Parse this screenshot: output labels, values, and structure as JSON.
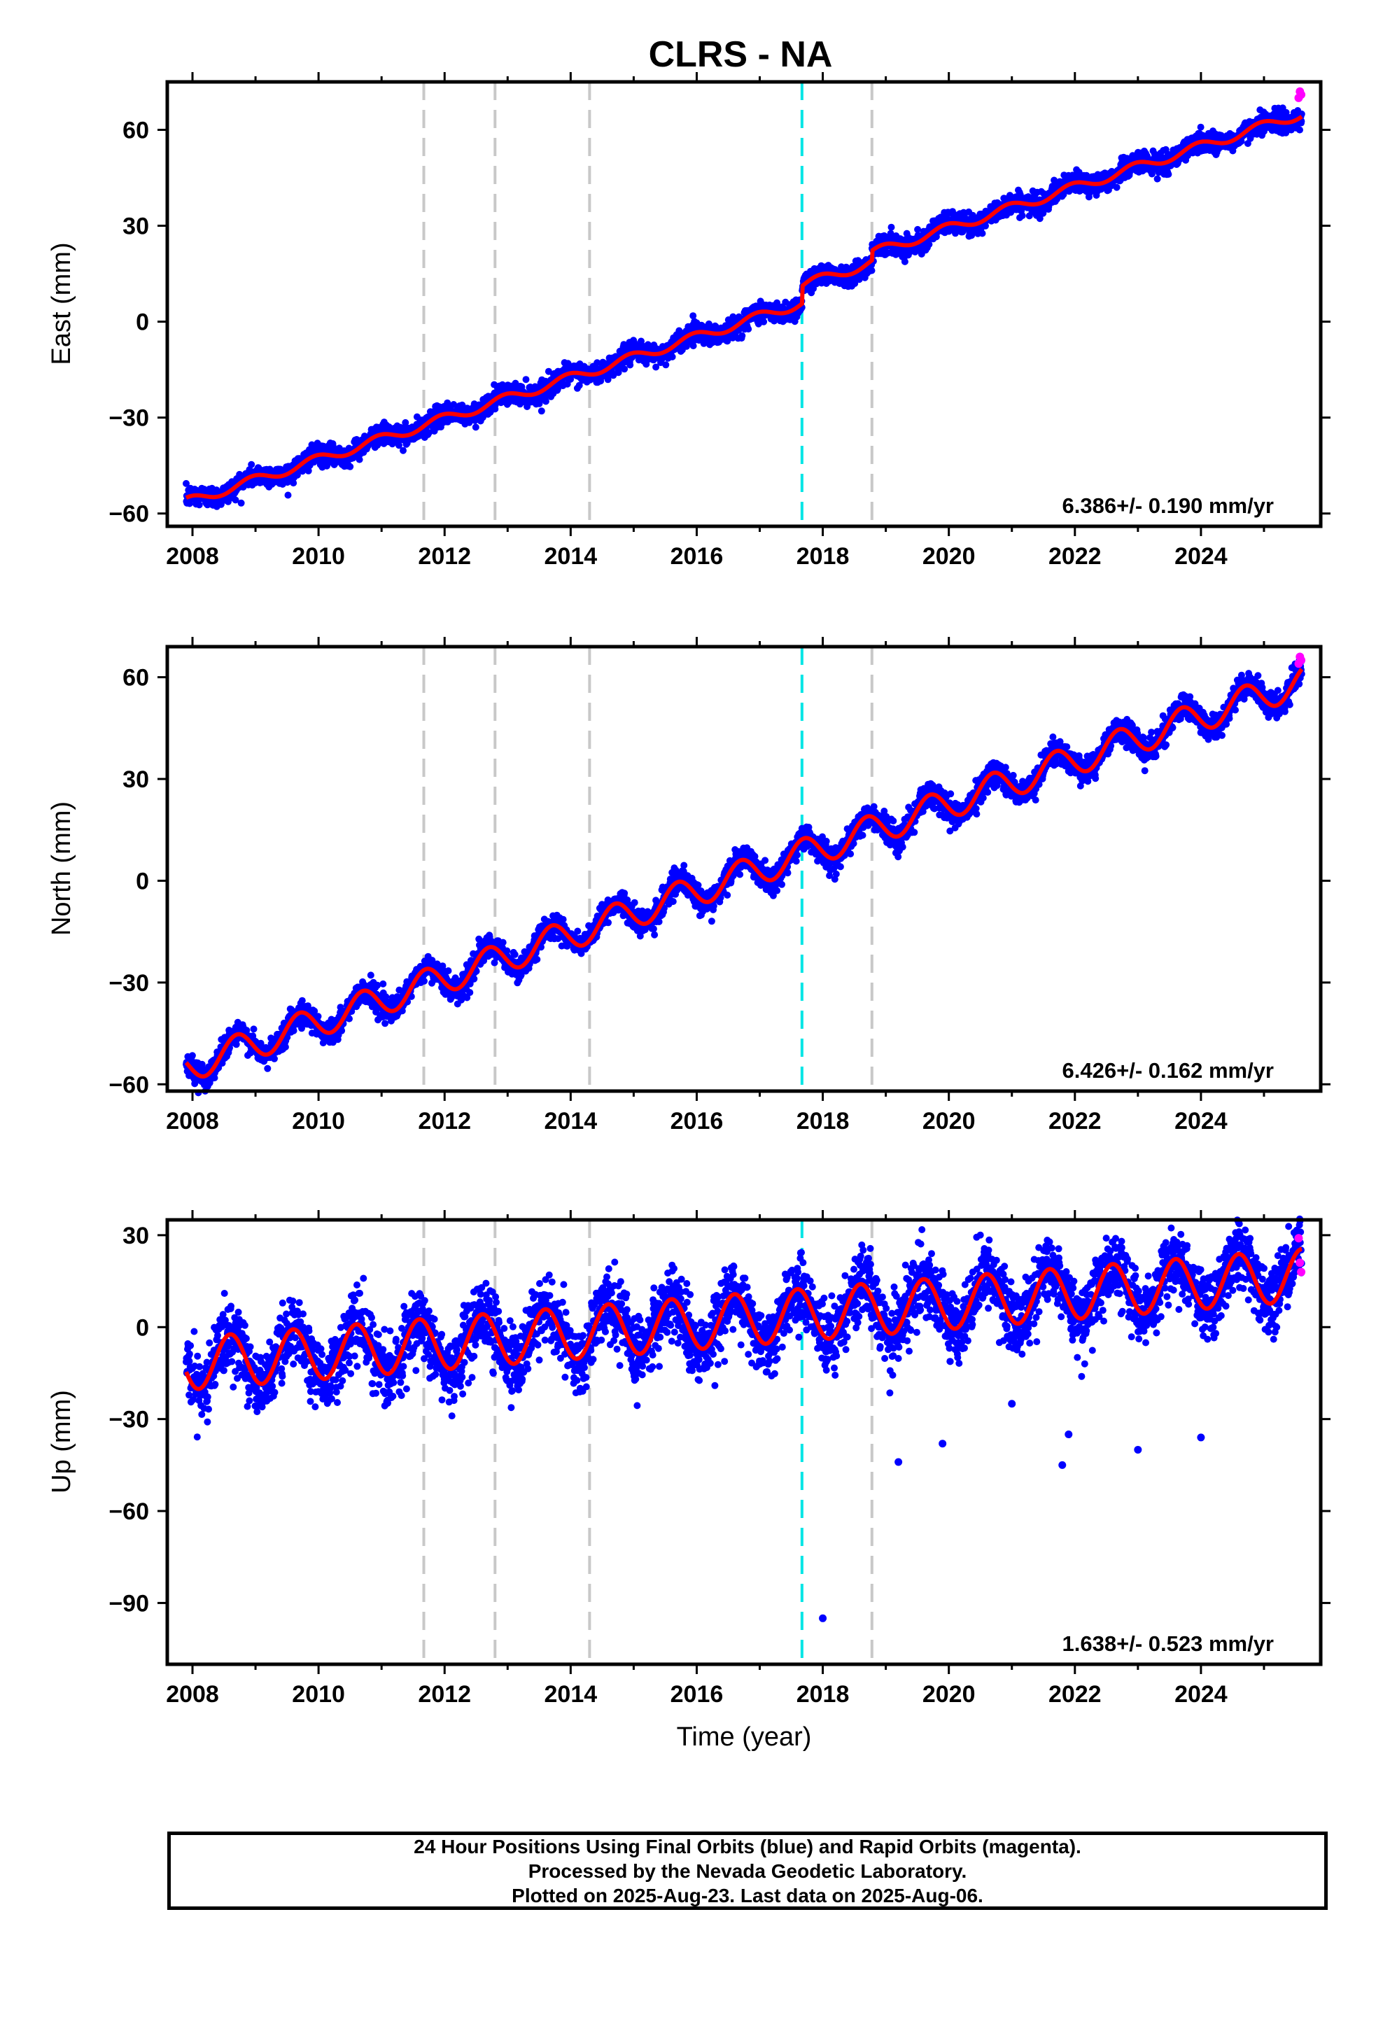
{
  "chart_data": {
    "type": "scatter",
    "title": "CLRS - NA",
    "xlabel": "Time (year)",
    "x_ticks": [
      2008,
      2010,
      2012,
      2014,
      2016,
      2018,
      2020,
      2022,
      2024
    ],
    "xlim": [
      2007.6,
      2025.9
    ],
    "event_lines": [
      {
        "x": 2011.67,
        "color": "#c8c8c8"
      },
      {
        "x": 2012.8,
        "color": "#c8c8c8"
      },
      {
        "x": 2014.3,
        "color": "#c8c8c8"
      },
      {
        "x": 2017.67,
        "color": "#00e5e5"
      },
      {
        "x": 2018.78,
        "color": "#c8c8c8"
      }
    ],
    "colors": {
      "final": "#0000ff",
      "rapid": "#ff00ff",
      "model": "#ff0000",
      "event": "#c8c8c8",
      "event_primary": "#00e5e5"
    },
    "panels": [
      {
        "id": "east",
        "ylabel": "East (mm)",
        "ylim": [
          -64,
          75
        ],
        "y_ticks": [
          -60,
          -30,
          0,
          30,
          60
        ],
        "rate": "6.386+/- 0.190 mm/yr",
        "model": {
          "start": 2007.9,
          "end": 2025.6,
          "y0": -56.5,
          "rate": 6.386,
          "seasonal_amp": 1.5,
          "phase": 0.2,
          "noise": 1.6,
          "offsets": [
            {
              "x": 2017.67,
              "dy": 5.5
            },
            {
              "x": 2018.78,
              "dy": 3.0
            }
          ]
        },
        "rapid": {
          "x": [
            2025.55,
            2025.57,
            2025.59
          ],
          "y": [
            70,
            72,
            71
          ]
        }
      },
      {
        "id": "north",
        "ylabel": "North (mm)",
        "ylim": [
          -62,
          69
        ],
        "y_ticks": [
          -60,
          -30,
          0,
          30,
          60
        ],
        "rate": "6.426+/- 0.162 mm/yr",
        "model": {
          "start": 2007.9,
          "end": 2025.6,
          "y0": -55.0,
          "rate": 6.426,
          "seasonal_amp": 4.5,
          "phase": 0.45,
          "noise": 1.8,
          "offsets": []
        },
        "rapid": {
          "x": [
            2025.55,
            2025.57,
            2025.59
          ],
          "y": [
            64,
            66,
            65
          ]
        }
      },
      {
        "id": "up",
        "ylabel": "Up (mm)",
        "ylim": [
          -110,
          35
        ],
        "y_ticks": [
          -90,
          -60,
          -30,
          0,
          30
        ],
        "rate": "1.638+/- 0.523 mm/yr",
        "model": {
          "start": 2007.9,
          "end": 2025.6,
          "y0": -12.0,
          "rate": 1.638,
          "seasonal_amp": 8.5,
          "phase": 0.55,
          "noise": 5.5,
          "offsets": []
        },
        "outliers": {
          "x": [
            2018.0,
            2019.2,
            2019.9,
            2021.0,
            2021.8,
            2021.9,
            2023.0,
            2024.0
          ],
          "y": [
            -95,
            -44,
            -38,
            -25,
            -45,
            -35,
            -40,
            -36
          ]
        },
        "rapid": {
          "x": [
            2025.55,
            2025.57,
            2025.59
          ],
          "y": [
            29,
            21,
            18
          ]
        }
      }
    ]
  },
  "caption": {
    "lines": [
      "24 Hour Positions Using Final Orbits (blue) and Rapid Orbits (magenta).",
      "Processed by the Nevada Geodetic Laboratory.",
      "Plotted on 2025-Aug-23. Last data on 2025-Aug-06."
    ]
  }
}
